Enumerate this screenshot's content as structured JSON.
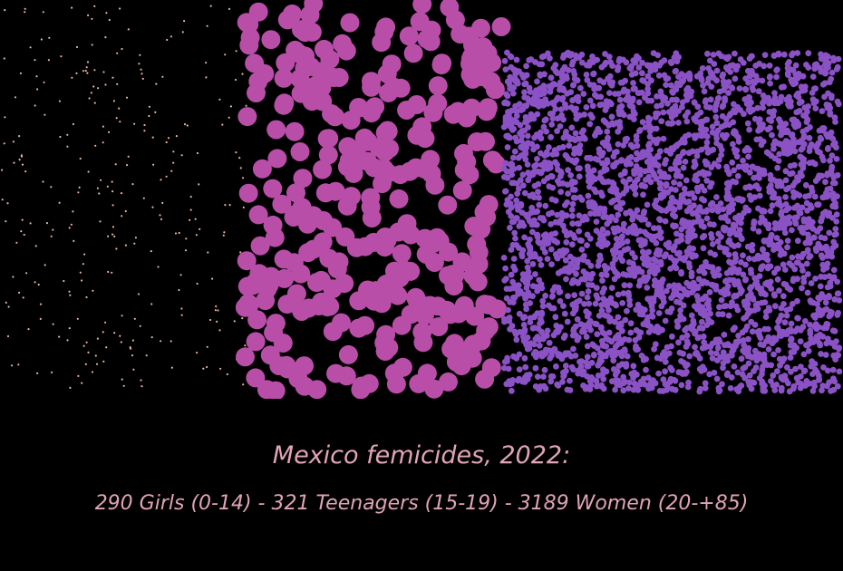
{
  "title": "Mexico femicides, 2022:",
  "subtitle": "290 Girls (0-14) - 321 Teenagers (15-19) - 3189 Women (20-+85)",
  "colors": {
    "background": "#000000",
    "text": "#e0a3b8",
    "girls": "#e8b0a0",
    "teenagers": "#b84ea8",
    "women": "#8a52c4"
  },
  "chart_data": {
    "type": "scatter",
    "title": "Mexico femicides, 2022:",
    "subtitle": "290 Girls (0-14) - 321 Teenagers (15-19) - 3189 Women (20-+85)",
    "series": [
      {
        "name": "Girls (0-14)",
        "count": 290,
        "color": "#e8b0a0"
      },
      {
        "name": "Teenagers (15-19)",
        "count": 321,
        "color": "#b84ea8"
      },
      {
        "name": "Women (20-+85)",
        "count": 3189,
        "color": "#8a52c4"
      }
    ]
  }
}
